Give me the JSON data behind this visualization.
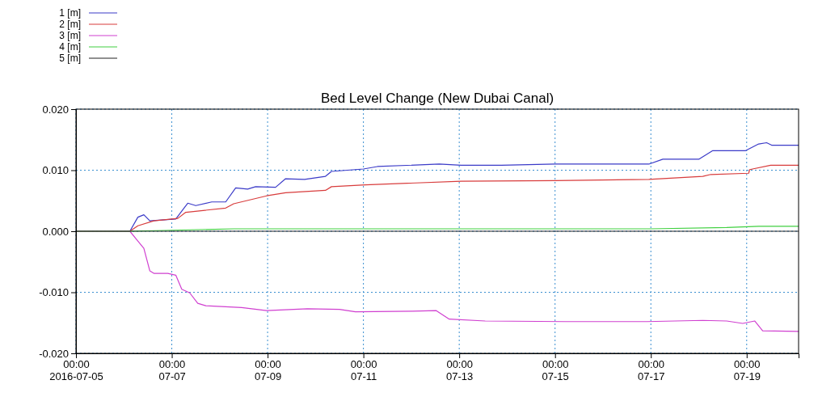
{
  "chart_data": {
    "type": "line",
    "title": "Bed Level Change (New Dubai Canal)",
    "xlim": [
      "2016-07-05T00:00",
      "2016-07-20T02:00"
    ],
    "xticks": [
      {
        "value": "2016-07-05T00:00",
        "label": "00:00\n2016-07-05"
      },
      {
        "value": "2016-07-07T00:00",
        "label": "00:00\n07-07"
      },
      {
        "value": "2016-07-09T00:00",
        "label": "00:00\n07-09"
      },
      {
        "value": "2016-07-11T00:00",
        "label": "00:00\n07-11"
      },
      {
        "value": "2016-07-13T00:00",
        "label": "00:00\n07-13"
      },
      {
        "value": "2016-07-15T00:00",
        "label": "00:00\n07-15"
      },
      {
        "value": "2016-07-17T00:00",
        "label": "00:00\n07-17"
      },
      {
        "value": "2016-07-19T00:00",
        "label": "00:00\n07-19"
      }
    ],
    "ylim": [
      -0.02,
      0.02
    ],
    "yticks": [
      {
        "value": -0.02,
        "label": "-0.020"
      },
      {
        "value": -0.01,
        "label": "-0.010"
      },
      {
        "value": 0,
        "label": "0.000"
      },
      {
        "value": 0.01,
        "label": "0.010"
      },
      {
        "value": 0.02,
        "label": "0.020"
      }
    ],
    "grid": true,
    "legend": "top left",
    "marker": "none",
    "line_style": "solid",
    "series": [
      {
        "name": "1 [m]",
        "color": "#3b3bc8",
        "x": [
          "2016-07-05T00:00",
          "2016-07-06T03:00",
          "2016-07-06T07:00",
          "2016-07-06T10:00",
          "2016-07-06T13:00",
          "2016-07-07T02:00",
          "2016-07-07T08:00",
          "2016-07-07T12:00",
          "2016-07-07T20:00",
          "2016-07-08T03:00",
          "2016-07-08T08:00",
          "2016-07-08T14:00",
          "2016-07-08T18:00",
          "2016-07-09T04:00",
          "2016-07-09T09:00",
          "2016-07-09T18:30",
          "2016-07-10T05:00",
          "2016-07-10T08:00",
          "2016-07-11T00:00",
          "2016-07-11T07:00",
          "2016-07-12T14:00",
          "2016-07-13T01:00",
          "2016-07-13T21:00",
          "2016-07-15T00:00",
          "2016-07-16T23:00",
          "2016-07-17T06:00",
          "2016-07-18T00:00",
          "2016-07-18T07:00",
          "2016-07-18T23:30",
          "2016-07-19T06:00",
          "2016-07-19T10:00",
          "2016-07-19T12:30",
          "2016-07-20T02:00"
        ],
        "values": [
          0,
          0,
          0.0023,
          0.0027,
          0.0017,
          0.002,
          0.0046,
          0.0042,
          0.0048,
          0.0048,
          0.0071,
          0.0069,
          0.0073,
          0.0072,
          0.0086,
          0.0085,
          0.009,
          0.0098,
          0.0102,
          0.0106,
          0.011,
          0.0108,
          0.0108,
          0.011,
          0.011,
          0.0118,
          0.0118,
          0.0132,
          0.0132,
          0.0143,
          0.0145,
          0.0141,
          0.0141
        ]
      },
      {
        "name": "2 [m]",
        "color": "#d83c3c",
        "x": [
          "2016-07-05T00:00",
          "2016-07-06T03:00",
          "2016-07-06T07:00",
          "2016-07-06T15:00",
          "2016-07-07T03:00",
          "2016-07-07T07:00",
          "2016-07-08T03:00",
          "2016-07-08T07:00",
          "2016-07-08T23:30",
          "2016-07-09T09:00",
          "2016-07-10T05:00",
          "2016-07-10T08:00",
          "2016-07-11T01:00",
          "2016-07-13T01:00",
          "2016-07-15T00:00",
          "2016-07-16T23:00",
          "2016-07-18T02:00",
          "2016-07-18T06:00",
          "2016-07-19T01:00",
          "2016-07-19T01:30",
          "2016-07-19T12:00",
          "2016-07-20T02:00"
        ],
        "values": [
          0,
          0,
          0.0009,
          0.0017,
          0.0021,
          0.0031,
          0.0038,
          0.0045,
          0.0058,
          0.0063,
          0.0067,
          0.0073,
          0.0076,
          0.0082,
          0.0083,
          0.0085,
          0.009,
          0.0093,
          0.0095,
          0.0101,
          0.0108,
          0.0108
        ]
      },
      {
        "name": "3 [m]",
        "color": "#d040d0",
        "x": [
          "2016-07-05T00:00",
          "2016-07-06T03:00",
          "2016-07-06T07:00",
          "2016-07-06T10:00",
          "2016-07-06T13:00",
          "2016-07-06T15:00",
          "2016-07-06T22:00",
          "2016-07-07T02:00",
          "2016-07-07T05:00",
          "2016-07-07T09:00",
          "2016-07-07T13:00",
          "2016-07-07T17:00",
          "2016-07-08T11:00",
          "2016-07-08T23:30",
          "2016-07-09T20:00",
          "2016-07-10T12:00",
          "2016-07-10T20:00",
          "2016-07-12T00:30",
          "2016-07-12T12:30",
          "2016-07-12T19:00",
          "2016-07-13T13:00",
          "2016-07-15T05:00",
          "2016-07-16T22:00",
          "2016-07-18T02:00",
          "2016-07-18T14:00",
          "2016-07-18T22:00",
          "2016-07-19T04:00",
          "2016-07-19T08:00",
          "2016-07-20T02:00"
        ],
        "values": [
          0,
          0,
          -0.0016,
          -0.0028,
          -0.0065,
          -0.0069,
          -0.0069,
          -0.0072,
          -0.0095,
          -0.0101,
          -0.0118,
          -0.0122,
          -0.0125,
          -0.013,
          -0.0127,
          -0.0128,
          -0.0132,
          -0.0131,
          -0.013,
          -0.0144,
          -0.0147,
          -0.0148,
          -0.0148,
          -0.0146,
          -0.0147,
          -0.0151,
          -0.0147,
          -0.0163,
          -0.0164
        ]
      },
      {
        "name": "4 [m]",
        "color": "#40d040",
        "x": [
          "2016-07-05T00:00",
          "2016-07-06T03:00",
          "2016-07-08T07:00",
          "2016-07-17T00:00",
          "2016-07-18T14:00",
          "2016-07-19T06:00",
          "2016-07-20T02:00"
        ],
        "values": [
          0,
          0,
          0.0004,
          0.0004,
          0.0006,
          0.0008,
          0.0008
        ]
      },
      {
        "name": "5 [m]",
        "color": "#222222",
        "x": [
          "2016-07-05T00:00",
          "2016-07-20T02:00"
        ],
        "values": [
          0,
          0
        ]
      }
    ]
  }
}
